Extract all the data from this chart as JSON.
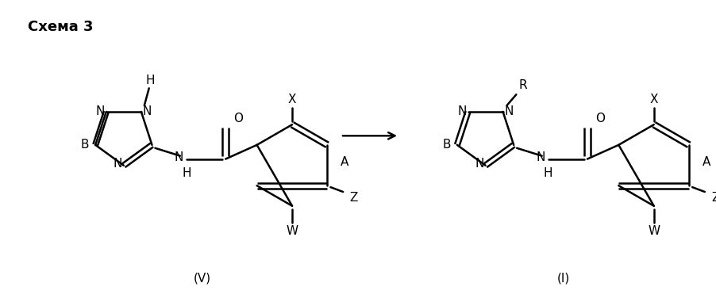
{
  "title": "Схема 3",
  "bg_color": "#ffffff",
  "line_color": "#000000",
  "lw": 1.8,
  "fontsize": 11,
  "label_V": "(V)",
  "label_I": "(I)"
}
